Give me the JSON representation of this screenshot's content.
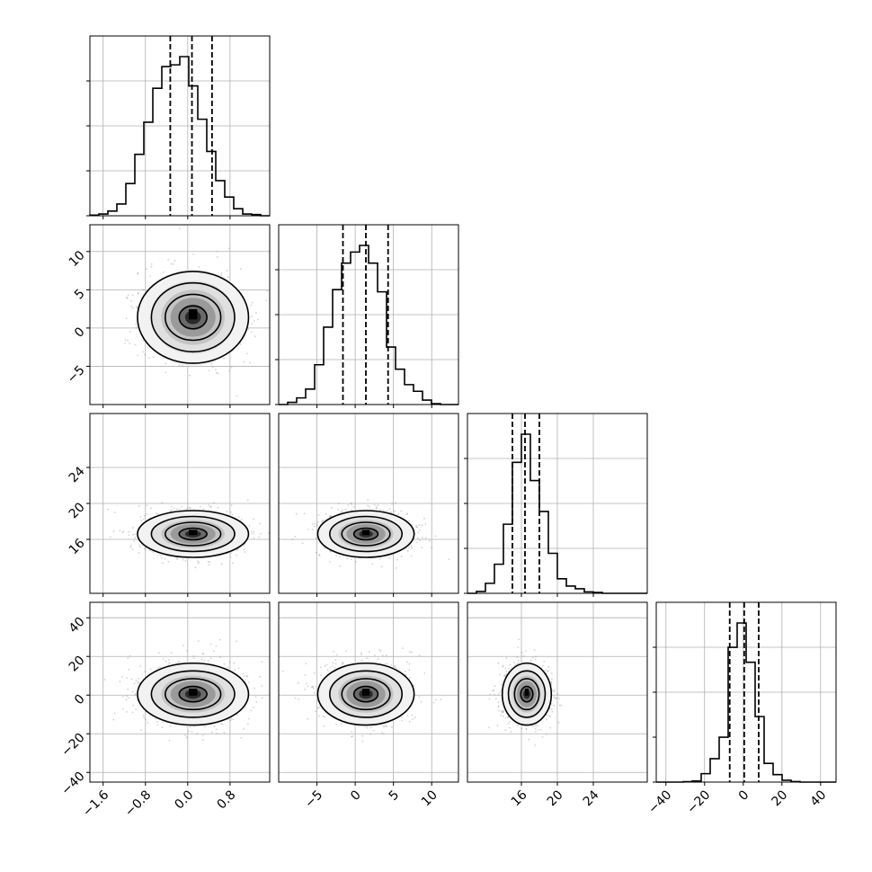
{
  "chart_data": {
    "type": "corner",
    "grid": true,
    "n_params": 4,
    "params": [
      {
        "range": [
          -1.85,
          1.55
        ],
        "ticks": [
          -1.6,
          -0.8,
          0.0,
          0.8
        ],
        "tick_labels": [
          "−1.6",
          "−0.8",
          "0.0",
          "0.8"
        ],
        "quantiles": [
          -0.33,
          0.08,
          0.46
        ],
        "hist": {
          "edges": [
            -1.85,
            -1.68,
            -1.51,
            -1.34,
            -1.17,
            -1.0,
            -0.83,
            -0.66,
            -0.49,
            -0.32,
            -0.15,
            0.02,
            0.19,
            0.36,
            0.53,
            0.7,
            0.87,
            1.04,
            1.21,
            1.38,
            1.55
          ],
          "counts": [
            1,
            3,
            8,
            20,
            55,
            105,
            160,
            218,
            255,
            258,
            272,
            222,
            165,
            110,
            60,
            32,
            12,
            3,
            2,
            0
          ]
        }
      },
      {
        "range": [
          -10.0,
          13.5
        ],
        "ticks": [
          -5,
          0,
          5,
          10
        ],
        "tick_labels": [
          "−5",
          "0",
          "5",
          "10"
        ],
        "quantiles": [
          -1.6,
          1.4,
          4.3
        ],
        "hist": {
          "edges": [
            -10.0,
            -8.825,
            -7.65,
            -6.475,
            -5.3,
            -4.125,
            -2.95,
            -1.775,
            -0.6,
            0.575,
            1.75,
            2.925,
            4.1,
            5.275,
            6.45,
            7.625,
            8.8,
            9.975,
            11.15,
            12.325,
            13.5
          ],
          "counts": [
            0,
            5,
            15,
            35,
            90,
            175,
            260,
            320,
            345,
            360,
            320,
            255,
            130,
            80,
            45,
            30,
            10,
            2,
            0,
            0
          ]
        }
      },
      {
        "range": [
          10.0,
          30.0
        ],
        "ticks": [
          16,
          20,
          24
        ],
        "tick_labels": [
          "16",
          "20",
          "24"
        ],
        "quantiles": [
          15.0,
          16.4,
          18.0
        ],
        "hist": {
          "edges": [
            10.0,
            11.0,
            12.0,
            13.0,
            14.0,
            15.0,
            16.0,
            17.0,
            18.0,
            19.0,
            20.0,
            21.0,
            22.0,
            23.0,
            24.0,
            25.0,
            26.0,
            27.0,
            28.0,
            29.0,
            30.0
          ],
          "counts": [
            0,
            10,
            55,
            160,
            380,
            720,
            875,
            620,
            450,
            220,
            80,
            40,
            25,
            8,
            5,
            0,
            0,
            0,
            0,
            0
          ]
        }
      },
      {
        "range": [
          -45.0,
          48.0
        ],
        "ticks": [
          -40,
          -20,
          0,
          20,
          40
        ],
        "tick_labels": [
          "−40",
          "−20",
          "0",
          "20",
          "40"
        ],
        "quantiles": [
          -7.0,
          0.5,
          8.0
        ],
        "hist": {
          "edges": [
            -45.0,
            -40.35,
            -35.7,
            -31.05,
            -26.4,
            -21.75,
            -17.1,
            -12.45,
            -7.8,
            -3.15,
            1.5,
            6.15,
            10.8,
            15.45,
            20.1,
            24.75,
            29.4,
            34.05,
            38.7,
            43.35,
            48.0
          ],
          "counts": [
            0,
            0,
            0,
            2,
            6,
            45,
            125,
            240,
            720,
            850,
            640,
            350,
            100,
            40,
            10,
            3,
            0,
            0,
            0,
            0
          ]
        }
      }
    ],
    "ylabel_ticks": {
      "1": {
        "ticks": [
          -5,
          0,
          5,
          10
        ],
        "tick_labels": [
          "−5",
          "0",
          "5",
          "10"
        ]
      },
      "2": {
        "ticks": [
          16,
          20,
          24
        ],
        "tick_labels": [
          "16",
          "20",
          "24"
        ]
      },
      "3": {
        "ticks": [
          -40,
          -20,
          0,
          20,
          40
        ],
        "tick_labels": [
          "−40",
          "−20",
          "0",
          "20",
          "40"
        ]
      }
    },
    "pairs": [
      {
        "row": 1,
        "col": 0,
        "center": [
          0.1,
          1.4
        ],
        "sigma": [
          0.5,
          3.0
        ]
      },
      {
        "row": 2,
        "col": 0,
        "center": [
          0.1,
          16.6
        ],
        "sigma": [
          0.5,
          1.3
        ]
      },
      {
        "row": 2,
        "col": 1,
        "center": [
          1.4,
          16.6
        ],
        "sigma": [
          3.0,
          1.3
        ]
      },
      {
        "row": 3,
        "col": 0,
        "center": [
          0.1,
          0.5
        ],
        "sigma": [
          0.5,
          8.0
        ]
      },
      {
        "row": 3,
        "col": 1,
        "center": [
          1.4,
          0.5
        ],
        "sigma": [
          3.0,
          8.0
        ]
      },
      {
        "row": 3,
        "col": 2,
        "center": [
          16.6,
          0.5
        ],
        "sigma": [
          1.3,
          8.0
        ]
      }
    ],
    "contour_levels_sigma": [
      0.5,
      1.0,
      1.5,
      2.0
    ],
    "scatter_color": "#7f7f7f",
    "line_color": "#000000",
    "grid_color": "#b0b0b0"
  }
}
